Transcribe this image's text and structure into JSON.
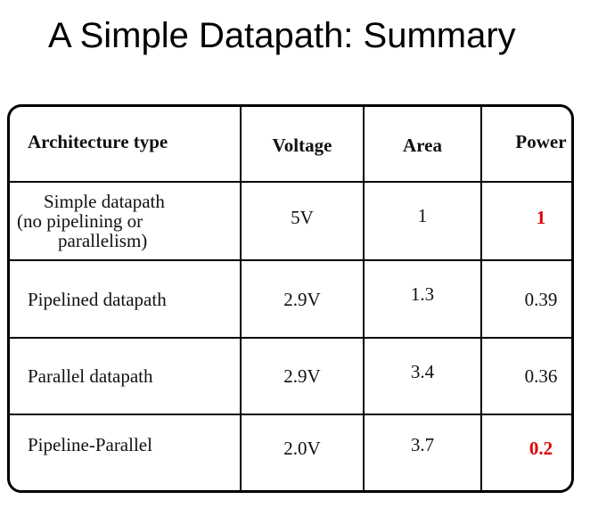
{
  "slide": {
    "title": "A Simple Datapath: Summary"
  },
  "table": {
    "headers": {
      "architecture": "Architecture type",
      "voltage": "Voltage",
      "area": "Area",
      "power": "Power"
    },
    "rows": [
      {
        "architecture_lines": [
          "Simple datapath",
          "(no pipelining or",
          "parallelism)"
        ],
        "voltage": "5V",
        "area": "1",
        "power": "1",
        "power_highlight": true
      },
      {
        "architecture": "Pipelined datapath",
        "voltage": "2.9V",
        "area": "1.3",
        "power": "0.39",
        "power_highlight": false
      },
      {
        "architecture": "Parallel datapath",
        "voltage": "2.9V",
        "area": "3.4",
        "power": "0.36",
        "power_highlight": false
      },
      {
        "architecture": "Pipeline-Parallel",
        "voltage": "2.0V",
        "area": "3.7",
        "power": "0.2",
        "power_highlight": true
      }
    ]
  },
  "colors": {
    "highlight": "#e00000",
    "text": "#111111",
    "border": "#000000"
  }
}
